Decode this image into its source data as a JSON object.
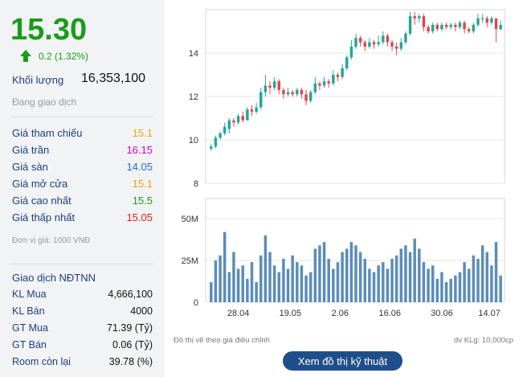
{
  "quote": {
    "price": "15.30",
    "change": "0.2 (1.32%)",
    "volume_label": "Khối lượng",
    "volume": "16,353,100",
    "status": "Đang giao dịch",
    "stats": [
      {
        "label": "Giá tham chiếu",
        "value": "15.1",
        "color": "#f0a500"
      },
      {
        "label": "Giá trần",
        "value": "16.15",
        "color": "#d400d4"
      },
      {
        "label": "Giá sàn",
        "value": "14.05",
        "color": "#1f6fd1"
      },
      {
        "label": "Giá mở cửa",
        "value": "15.1",
        "color": "#f0a500"
      },
      {
        "label": "Giá cao nhất",
        "value": "15.5",
        "color": "#1a9c1a"
      },
      {
        "label": "Giá thấp nhất",
        "value": "15.05",
        "color": "#e01e1e"
      }
    ],
    "unit_note": "Đơn vị giá: 1000 VNĐ"
  },
  "foreign": {
    "title": "Giao dịch NĐTNN",
    "rows": [
      {
        "label": "KL Mua",
        "value": "4,666,100"
      },
      {
        "label": "KL Bán",
        "value": "4000"
      },
      {
        "label": "GT Mua",
        "value": "71.39 (Tỷ)"
      },
      {
        "label": "GT Bán",
        "value": "0.06 (Tỷ)"
      },
      {
        "label": "Room còn lại",
        "value": "39.78 (%)"
      }
    ]
  },
  "chart_data": {
    "type": "candlestick",
    "price_ticks": [
      "8",
      "10",
      "12",
      "14"
    ],
    "price_ylim": [
      8,
      16
    ],
    "volume_ticks": [
      "0",
      "25M",
      "50M"
    ],
    "volume_ylim": [
      0,
      62
    ],
    "date_ticks": [
      "28.04",
      "19.05",
      "2.06",
      "16.06",
      "30.06",
      "14.07"
    ],
    "candles": [
      [
        9.6,
        9.7,
        9.5,
        9.8
      ],
      [
        9.7,
        10.1,
        9.6,
        10.2
      ],
      [
        10.1,
        10.3,
        10.0,
        10.4
      ],
      [
        10.3,
        10.6,
        10.2,
        10.8
      ],
      [
        10.5,
        10.9,
        10.3,
        11.0
      ],
      [
        10.9,
        10.8,
        10.6,
        11.0
      ],
      [
        10.8,
        11.1,
        10.7,
        11.2
      ],
      [
        11.1,
        10.9,
        10.8,
        11.3
      ],
      [
        10.9,
        11.4,
        10.9,
        11.5
      ],
      [
        11.4,
        11.3,
        11.1,
        11.6
      ],
      [
        11.3,
        11.5,
        11.2,
        11.7
      ],
      [
        11.5,
        12.2,
        11.4,
        12.4
      ],
      [
        12.2,
        12.5,
        12.0,
        13.0
      ],
      [
        12.5,
        12.4,
        12.1,
        12.7
      ],
      [
        12.4,
        12.7,
        12.3,
        12.9
      ],
      [
        12.7,
        12.3,
        12.1,
        12.8
      ],
      [
        12.3,
        12.1,
        11.9,
        12.4
      ],
      [
        12.1,
        12.2,
        12.0,
        12.4
      ],
      [
        12.2,
        12.1,
        12.0,
        12.3
      ],
      [
        12.1,
        12.3,
        12.0,
        12.4
      ],
      [
        12.3,
        12.1,
        11.9,
        12.4
      ],
      [
        12.1,
        11.8,
        11.6,
        12.3
      ],
      [
        11.8,
        12.2,
        11.7,
        12.3
      ],
      [
        12.2,
        12.6,
        12.1,
        12.9
      ],
      [
        12.6,
        12.5,
        12.3,
        12.7
      ],
      [
        12.5,
        12.7,
        12.4,
        12.9
      ],
      [
        12.7,
        12.6,
        12.4,
        12.8
      ],
      [
        12.6,
        13.0,
        12.5,
        13.2
      ],
      [
        13.0,
        12.9,
        12.7,
        13.1
      ],
      [
        12.9,
        13.3,
        12.8,
        13.5
      ],
      [
        13.3,
        13.8,
        13.2,
        13.9
      ],
      [
        13.8,
        14.3,
        13.7,
        14.6
      ],
      [
        14.3,
        14.7,
        14.2,
        14.9
      ],
      [
        14.7,
        14.5,
        14.3,
        14.8
      ],
      [
        14.5,
        14.3,
        14.1,
        14.6
      ],
      [
        14.3,
        14.5,
        14.2,
        14.7
      ],
      [
        14.5,
        14.4,
        14.2,
        14.6
      ],
      [
        14.4,
        14.5,
        14.3,
        14.8
      ],
      [
        14.5,
        14.8,
        14.4,
        15.0
      ],
      [
        14.8,
        14.5,
        14.3,
        14.9
      ],
      [
        14.5,
        14.3,
        14.1,
        14.6
      ],
      [
        14.3,
        14.2,
        13.9,
        14.5
      ],
      [
        14.2,
        14.5,
        14.1,
        14.7
      ],
      [
        14.5,
        14.9,
        14.4,
        15.0
      ],
      [
        14.9,
        15.7,
        14.8,
        15.9
      ],
      [
        15.7,
        15.6,
        15.3,
        15.9
      ],
      [
        15.6,
        15.7,
        15.4,
        15.8
      ],
      [
        15.7,
        15.2,
        15.0,
        15.8
      ],
      [
        15.2,
        15.0,
        14.9,
        15.3
      ],
      [
        15.0,
        15.3,
        14.9,
        15.4
      ],
      [
        15.3,
        15.1,
        15.0,
        15.4
      ],
      [
        15.1,
        15.3,
        15.0,
        15.4
      ],
      [
        15.3,
        15.2,
        15.1,
        15.4
      ],
      [
        15.2,
        15.3,
        15.1,
        15.4
      ],
      [
        15.3,
        15.2,
        15.0,
        15.4
      ],
      [
        15.2,
        15.4,
        15.1,
        15.5
      ],
      [
        15.4,
        15.1,
        14.9,
        15.5
      ],
      [
        15.1,
        15.0,
        14.9,
        15.2
      ],
      [
        15.0,
        15.3,
        14.9,
        15.4
      ],
      [
        15.3,
        15.6,
        15.2,
        15.8
      ],
      [
        15.6,
        15.6,
        15.4,
        15.8
      ],
      [
        15.6,
        15.4,
        15.2,
        15.7
      ],
      [
        15.4,
        15.6,
        15.3,
        15.7
      ],
      [
        15.6,
        15.1,
        14.5,
        15.6
      ],
      [
        15.1,
        15.3,
        15.05,
        15.5
      ]
    ],
    "volumes": [
      12,
      25,
      28,
      42,
      18,
      30,
      20,
      22,
      14,
      24,
      12,
      28,
      40,
      30,
      22,
      18,
      26,
      20,
      28,
      24,
      22,
      16,
      18,
      32,
      34,
      36,
      26,
      20,
      24,
      30,
      32,
      36,
      34,
      30,
      26,
      20,
      18,
      22,
      24,
      20,
      26,
      28,
      32,
      34,
      30,
      38,
      32,
      24,
      20,
      22,
      14,
      18,
      12,
      14,
      16,
      18,
      24,
      20,
      28,
      26,
      34,
      30,
      22,
      36,
      16
    ],
    "source_note": "Đồ thị vẽ theo giá điều chỉnh",
    "volume_unit_note": "dv KLg: 10,000cp"
  },
  "actions": {
    "tech_chart_button": "Xem đồ thị kỹ thuật"
  }
}
